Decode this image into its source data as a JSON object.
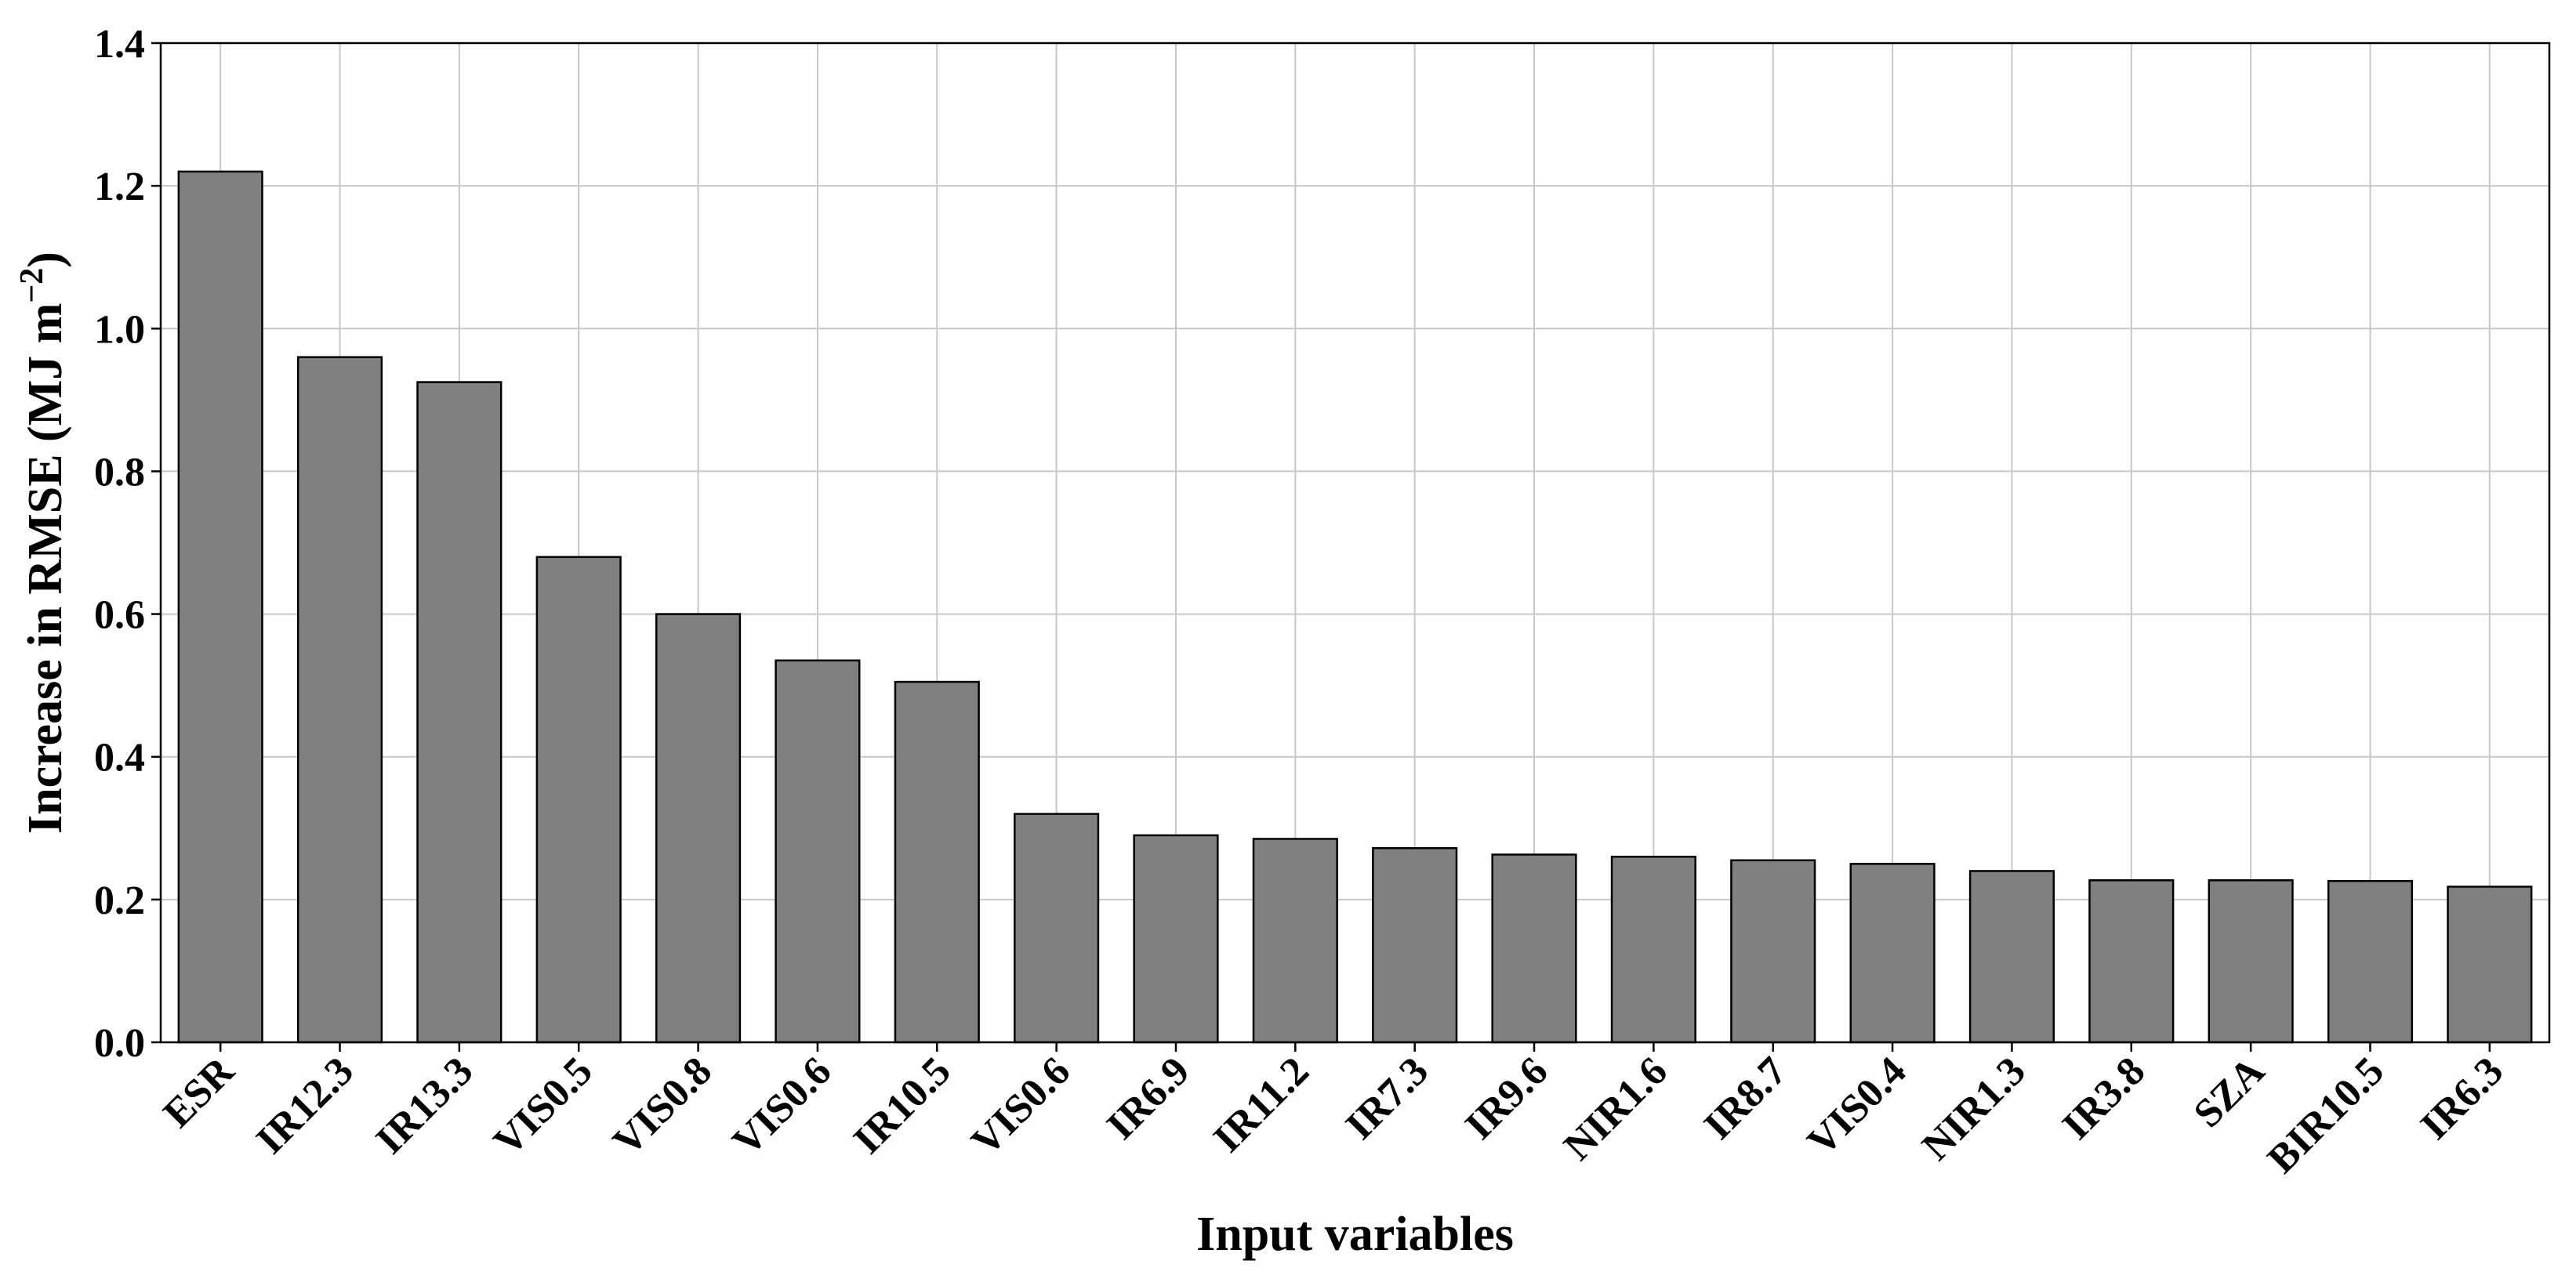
{
  "chart_data": {
    "type": "bar",
    "title": "",
    "xlabel": "Input variables",
    "ylabel": {
      "prefix": "Increase in RMSE (MJ m",
      "sup": "−2",
      "suffix": ")"
    },
    "categories": [
      "ESR",
      "IR12.3",
      "IR13.3",
      "VIS0.5",
      "VIS0.8",
      "VIS0.6",
      "IR10.5",
      "VIS0.6",
      "IR6.9",
      "IR11.2",
      "IR7.3",
      "IR9.6",
      "NIR1.6",
      "IR8.7",
      "VIS0.4",
      "NIR1.3",
      "IR3.8",
      "SZA",
      "BIR10.5",
      "IR6.3"
    ],
    "values": [
      1.22,
      0.96,
      0.925,
      0.68,
      0.6,
      0.535,
      0.505,
      0.32,
      0.29,
      0.285,
      0.272,
      0.263,
      0.26,
      0.255,
      0.25,
      0.24,
      0.227,
      0.227,
      0.226,
      0.218
    ],
    "ylim": [
      0,
      1.4
    ],
    "yticks": [
      "0.0",
      "0.2",
      "0.4",
      "0.6",
      "0.8",
      "1.0",
      "1.2",
      "1.4"
    ],
    "grid": true,
    "bar_color": "#808080",
    "bar_edge_color": "#000000",
    "grid_color": "#c8c8c8"
  }
}
